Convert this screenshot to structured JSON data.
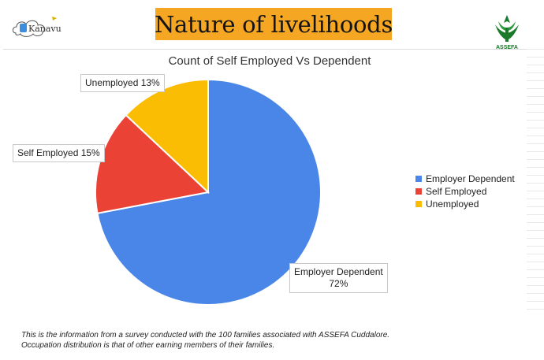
{
  "header": {
    "title": "Nature of livelihoods",
    "left_logo_text": "Kanavu",
    "right_logo_text": "ASSEFA"
  },
  "chart_data": {
    "type": "pie",
    "title": "Count of Self Employed Vs Dependent",
    "categories": [
      "Employer Dependent",
      "Self Employed",
      "Unemployed"
    ],
    "values": [
      72,
      15,
      13
    ],
    "unit": "%",
    "colors": [
      "#4a86e8",
      "#ea4335",
      "#fbbc04"
    ],
    "legend_position": "right",
    "data_labels": [
      {
        "category": "Employer Dependent",
        "line1": "Employer Dependent",
        "line2": "72%"
      },
      {
        "category": "Self Employed",
        "line1": "Self Employed 15%",
        "line2": ""
      },
      {
        "category": "Unemployed",
        "line1": "Unemployed 13%",
        "line2": ""
      }
    ]
  },
  "footnote": {
    "line1": "This is the information from a survey conducted with the 100 families associated with ASSEFA Cuddalore.",
    "line2": "Occupation distribution is that of other earning members of their families."
  }
}
